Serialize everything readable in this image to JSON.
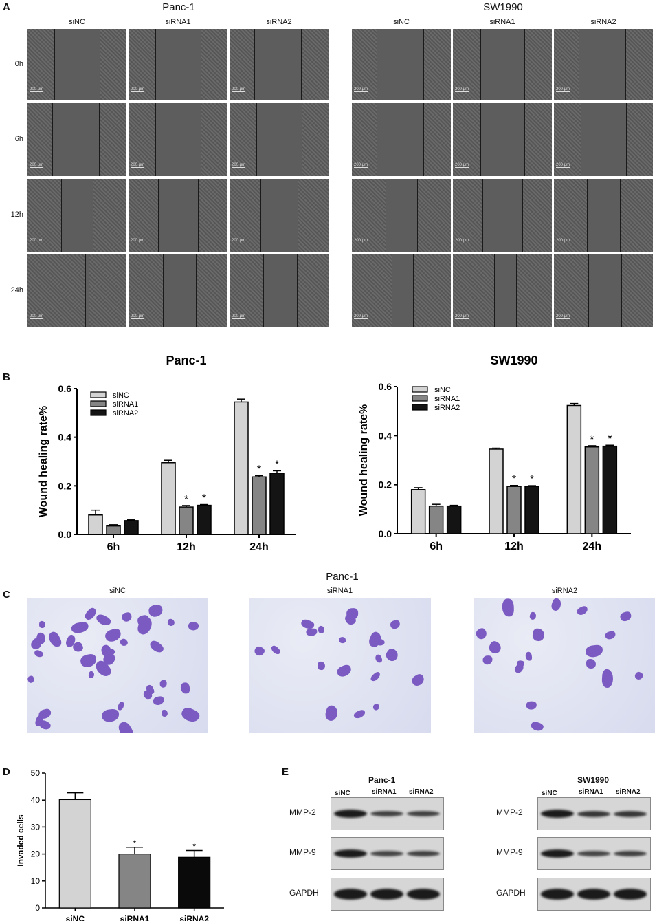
{
  "panels": {
    "a": "A",
    "b": "B",
    "c": "C",
    "d": "D",
    "e": "E"
  },
  "panelA": {
    "groups": [
      "Panc-1",
      "SW1990"
    ],
    "columns": [
      "siNC",
      "siRNA1",
      "siRNA2"
    ],
    "rows": [
      "0h",
      "6h",
      "12h",
      "24h"
    ],
    "scale_bar": "200 μm"
  },
  "chart_data": [
    {
      "type": "bar",
      "title": "Panc-1",
      "ylabel": "Wound healing rate%",
      "categories": [
        "6h",
        "12h",
        "24h"
      ],
      "ylim": [
        0,
        0.6
      ],
      "yticks": [
        "0.0",
        "0.2",
        "0.4",
        "0.6"
      ],
      "legend_position": "top-left",
      "series": [
        {
          "name": "siNC",
          "values": [
            0.08,
            0.295,
            0.545
          ],
          "errors": [
            0.02,
            0.01,
            0.012
          ],
          "color": "#d3d3d3"
        },
        {
          "name": "siRNA1",
          "values": [
            0.035,
            0.113,
            0.237
          ],
          "errors": [
            0.005,
            0.006,
            0.005
          ],
          "color": "#858585"
        },
        {
          "name": "siRNA2",
          "values": [
            0.057,
            0.12,
            0.252
          ],
          "errors": [
            0.003,
            0.003,
            0.01
          ],
          "color": "#141414"
        }
      ],
      "annotations": [
        "*",
        "*",
        "*",
        "*"
      ]
    },
    {
      "type": "bar",
      "title": "SW1990",
      "ylabel": "Wound healing rate%",
      "categories": [
        "6h",
        "12h",
        "24h"
      ],
      "ylim": [
        0,
        0.6
      ],
      "yticks": [
        "0.0",
        "0.2",
        "0.4",
        "0.6"
      ],
      "legend_position": "top-left",
      "series": [
        {
          "name": "siNC",
          "values": [
            0.18,
            0.345,
            0.523
          ],
          "errors": [
            0.008,
            0.004,
            0.008
          ],
          "color": "#d3d3d3"
        },
        {
          "name": "siRNA1",
          "values": [
            0.113,
            0.193,
            0.354
          ],
          "errors": [
            0.007,
            0.004,
            0.005
          ],
          "color": "#858585"
        },
        {
          "name": "siRNA2",
          "values": [
            0.113,
            0.193,
            0.357
          ],
          "errors": [
            0.003,
            0.003,
            0.004
          ],
          "color": "#141414"
        }
      ],
      "annotations": [
        "*",
        "*",
        "*",
        "*"
      ]
    },
    {
      "type": "bar",
      "title": "",
      "ylabel": "Invaded cells",
      "categories": [
        "siNC",
        "siRNA1",
        "siRNA2"
      ],
      "values": [
        40.2,
        20,
        18.8
      ],
      "errors": [
        2.5,
        2.5,
        2.5
      ],
      "colors": [
        "#d3d3d3",
        "#858585",
        "#0a0a0a"
      ],
      "ylim": [
        0,
        50
      ],
      "yticks": [
        "0",
        "10",
        "20",
        "30",
        "40",
        "50"
      ],
      "annotations": [
        "",
        "*",
        "*"
      ]
    }
  ],
  "panelC": {
    "title": "Panc-1",
    "columns": [
      "siNC",
      "siRNA1",
      "siRNA2"
    ]
  },
  "panelE": {
    "groups": [
      {
        "title": "Panc-1",
        "lanes": [
          "siNC",
          "siRNA1",
          "siRNA2"
        ]
      },
      {
        "title": "SW1990",
        "lanes": [
          "siNC",
          "siRNA1",
          "siRNA2"
        ]
      }
    ],
    "proteins": [
      "MMP-2",
      "MMP-9",
      "GAPDH"
    ]
  }
}
